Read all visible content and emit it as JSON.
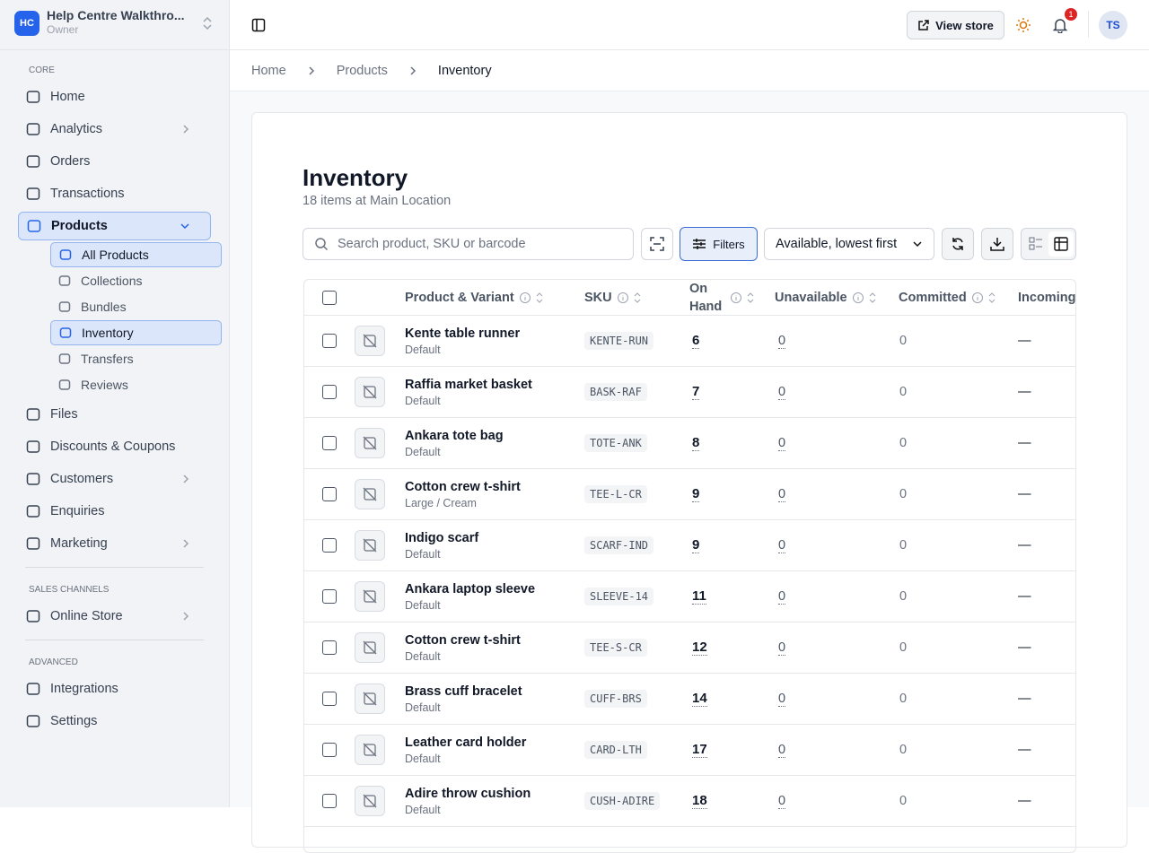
{
  "sidebar": {
    "store_badge": "HC",
    "store_name": "Help Centre Walkthro...",
    "role": "Owner",
    "sections": [
      {
        "label": "CORE",
        "items": [
          {
            "label": "Home"
          },
          {
            "label": "Analytics",
            "expandable": true
          },
          {
            "label": "Orders"
          },
          {
            "label": "Transactions"
          },
          {
            "label": "Products",
            "expanded": true,
            "active": true,
            "children": [
              {
                "label": "All Products",
                "active": true
              },
              {
                "label": "Collections"
              },
              {
                "label": "Bundles"
              },
              {
                "label": "Inventory",
                "active": true
              },
              {
                "label": "Transfers"
              },
              {
                "label": "Reviews"
              }
            ]
          },
          {
            "label": "Files"
          },
          {
            "label": "Discounts & Coupons"
          },
          {
            "label": "Customers",
            "expandable": true
          },
          {
            "label": "Enquiries"
          },
          {
            "label": "Marketing",
            "expandable": true
          }
        ]
      },
      {
        "label": "SALES CHANNELS",
        "items": [
          {
            "label": "Online Store",
            "expandable": true
          }
        ]
      },
      {
        "label": "ADVANCED",
        "items": [
          {
            "label": "Integrations"
          },
          {
            "label": "Settings"
          }
        ]
      }
    ]
  },
  "header": {
    "view_store": "View store",
    "notifications": 1,
    "avatar": "TS"
  },
  "breadcrumbs": [
    "Home",
    "Products",
    "Inventory"
  ],
  "page": {
    "title": "Inventory",
    "subtitle": "18 items at Main Location",
    "search_placeholder": "Search product, SKU or barcode",
    "filters": "Filters",
    "sort": "Available, lowest first"
  },
  "table": {
    "columns": [
      "Product & Variant",
      "SKU",
      "On Hand",
      "Unavailable",
      "Committed",
      "Incoming"
    ],
    "rows": [
      {
        "name": "Kente table runner",
        "variant": "Default",
        "sku": "KENTE-RUN",
        "on_hand": 6,
        "unavailable": 0,
        "committed": 0,
        "incoming": "—"
      },
      {
        "name": "Raffia market basket",
        "variant": "Default",
        "sku": "BASK-RAF",
        "on_hand": 7,
        "unavailable": 0,
        "committed": 0,
        "incoming": "—"
      },
      {
        "name": "Ankara tote bag",
        "variant": "Default",
        "sku": "TOTE-ANK",
        "on_hand": 8,
        "unavailable": 0,
        "committed": 0,
        "incoming": "—"
      },
      {
        "name": "Cotton crew t-shirt",
        "variant": "Large / Cream",
        "sku": "TEE-L-CR",
        "on_hand": 9,
        "unavailable": 0,
        "committed": 0,
        "incoming": "—"
      },
      {
        "name": "Indigo scarf",
        "variant": "Default",
        "sku": "SCARF-IND",
        "on_hand": 9,
        "unavailable": 0,
        "committed": 0,
        "incoming": "—"
      },
      {
        "name": "Ankara laptop sleeve",
        "variant": "Default",
        "sku": "SLEEVE-14",
        "on_hand": 11,
        "unavailable": 0,
        "committed": 0,
        "incoming": "—"
      },
      {
        "name": "Cotton crew t-shirt",
        "variant": "Default",
        "sku": "TEE-S-CR",
        "on_hand": 12,
        "unavailable": 0,
        "committed": 0,
        "incoming": "—"
      },
      {
        "name": "Brass cuff bracelet",
        "variant": "Default",
        "sku": "CUFF-BRS",
        "on_hand": 14,
        "unavailable": 0,
        "committed": 0,
        "incoming": "—"
      },
      {
        "name": "Leather card holder",
        "variant": "Default",
        "sku": "CARD-LTH",
        "on_hand": 17,
        "unavailable": 0,
        "committed": 0,
        "incoming": "—"
      },
      {
        "name": "Adire throw cushion",
        "variant": "Default",
        "sku": "CUSH-ADIRE",
        "on_hand": 18,
        "unavailable": 0,
        "committed": 0,
        "incoming": "—"
      }
    ]
  }
}
